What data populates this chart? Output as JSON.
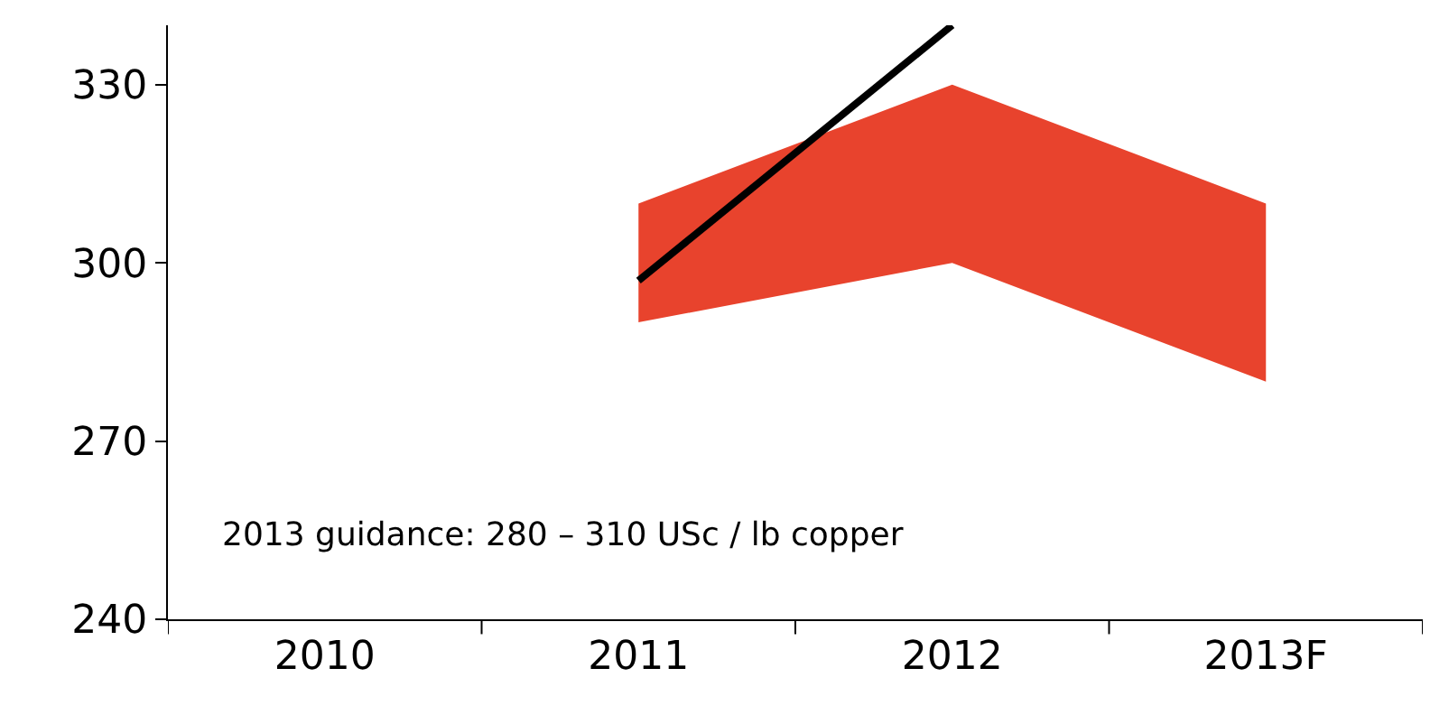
{
  "chart_data": {
    "type": "line",
    "categories": [
      "2010",
      "2011",
      "2012",
      "2013F"
    ],
    "series": [
      {
        "type": "area",
        "color": "#e8432d",
        "values": [
          null,
          null,
          null,
          null
        ],
        "lower": [
          null,
          290,
          300,
          280
        ],
        "upper": [
          null,
          310,
          330,
          310
        ]
      },
      {
        "color": "#000000",
        "values": [
          null,
          297,
          340,
          null
        ]
      }
    ],
    "ylim": [
      240,
      340
    ],
    "yticks": [
      240,
      270,
      300,
      330
    ],
    "marker": "none",
    "line_style": "solid",
    "annotations": [
      "2013 guidance: 280 – 310 USc / lb copper"
    ]
  }
}
